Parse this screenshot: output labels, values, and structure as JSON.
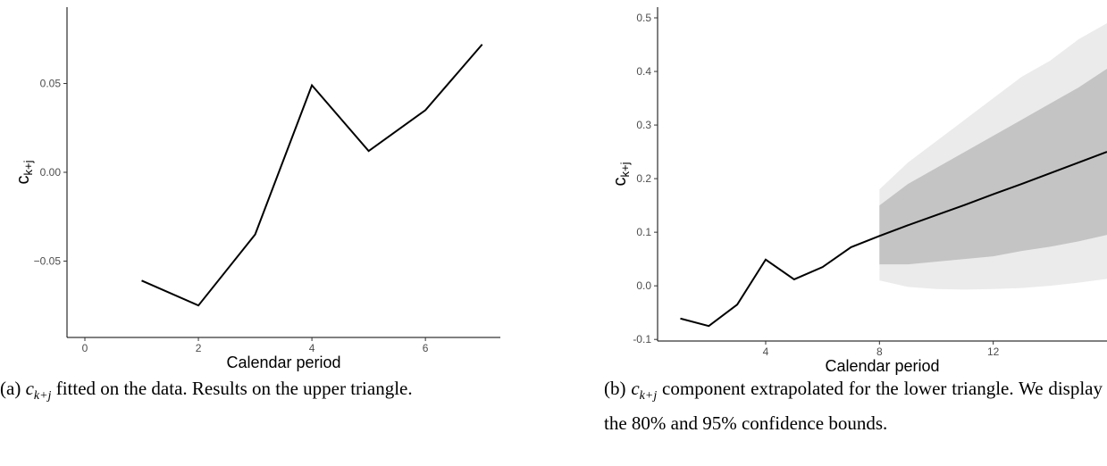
{
  "chart_data": [
    {
      "type": "line",
      "xlabel": "Calendar period",
      "ylabel": "c",
      "ylabel_sub": "k+j",
      "x": [
        1,
        2,
        3,
        4,
        5,
        6,
        7
      ],
      "values": [
        -0.061,
        -0.075,
        -0.035,
        0.049,
        0.012,
        0.035,
        0.072
      ],
      "color": "#000000",
      "xlim": [
        -0.315,
        7.32
      ],
      "ylim": [
        -0.093,
        0.093
      ],
      "xticks": [
        0,
        2,
        4,
        6
      ],
      "yticks": [
        {
          "value": 0.05,
          "label": "0.05"
        },
        {
          "value": 0,
          "label": "0.00"
        },
        {
          "value": -0.05,
          "label": "−0.05"
        }
      ]
    },
    {
      "type": "line",
      "xlabel": "Calendar period",
      "ylabel": "c",
      "ylabel_sub": "k+j",
      "x": [
        1,
        2,
        3,
        4,
        5,
        6,
        7,
        8,
        9,
        10,
        11,
        12,
        13,
        14,
        15,
        16
      ],
      "values": [
        -0.061,
        -0.075,
        -0.035,
        0.049,
        0.012,
        0.035,
        0.072,
        0.093,
        0.113,
        0.132,
        0.151,
        0.171,
        0.19,
        0.21,
        0.23,
        0.25
      ],
      "color": "#000000",
      "bands": [
        {
          "color": "#ebebeb",
          "x": [
            8,
            9,
            10,
            11,
            12,
            13,
            14,
            15,
            16
          ],
          "lower": [
            0.01,
            -0.002,
            -0.006,
            -0.007,
            -0.006,
            -0.004,
            0.0,
            0.006,
            0.013
          ],
          "upper": [
            0.18,
            0.23,
            0.27,
            0.31,
            0.35,
            0.39,
            0.42,
            0.46,
            0.49
          ]
        },
        {
          "color": "#c4c4c4",
          "x": [
            8,
            9,
            10,
            11,
            12,
            13,
            14,
            15,
            16
          ],
          "lower": [
            0.04,
            0.04,
            0.045,
            0.05,
            0.055,
            0.065,
            0.073,
            0.083,
            0.095
          ],
          "upper": [
            0.15,
            0.19,
            0.22,
            0.25,
            0.28,
            0.31,
            0.34,
            0.37,
            0.405
          ]
        }
      ],
      "xlim": [
        0.2,
        16
      ],
      "ylim": [
        -0.103,
        0.52
      ],
      "xticks": [
        4,
        8,
        12
      ],
      "yticks": [
        0.5,
        0.4,
        0.3,
        0.2,
        0.1,
        {
          "value": 0,
          "label": "0.0"
        },
        -0.1
      ]
    }
  ],
  "captions": [
    {
      "label": "(a)",
      "math": "c",
      "math_sub": "k+j",
      "text": "fitted on the data. Results on the upper triangle."
    },
    {
      "label": "(b)",
      "math": "c",
      "math_sub": "k+j",
      "text": "component extrapolated for the lower triangle. We display the 80% and 95% confidence bounds."
    }
  ]
}
